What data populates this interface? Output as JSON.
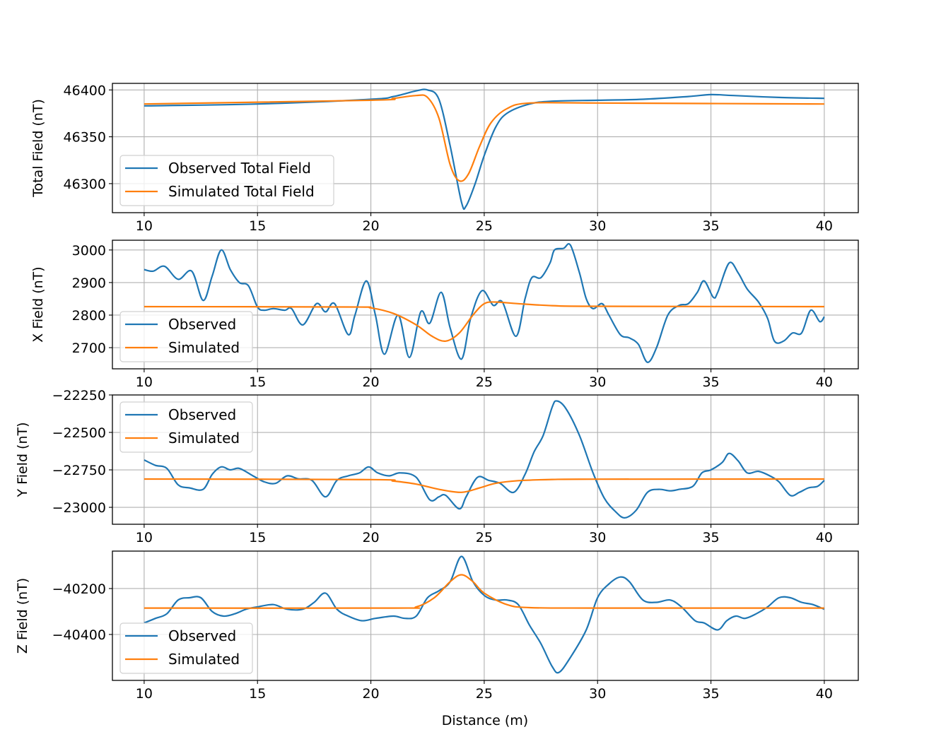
{
  "figure": {
    "xlabel": "Distance (m)"
  },
  "chart_data": [
    {
      "type": "line",
      "ylabel": "Total Field (nT)",
      "xlim": [
        8.6,
        41.5
      ],
      "ylim": [
        46269,
        46407
      ],
      "xticks": [
        10,
        15,
        20,
        25,
        30,
        35,
        40
      ],
      "yticks": [
        46300,
        46350,
        46400
      ],
      "grid": true,
      "legend": "lower-left",
      "series": [
        {
          "name": "Observed Total Field",
          "color": "#1f77b4",
          "x": [
            10,
            15,
            20,
            21,
            22,
            22.5,
            23,
            23.5,
            24,
            24.2,
            24.6,
            25,
            25.5,
            26,
            27,
            28,
            30,
            32,
            34,
            35,
            36,
            38,
            40
          ],
          "y": [
            46383,
            46385,
            46390,
            46393,
            46399,
            46400,
            46390,
            46340,
            46280,
            46276,
            46300,
            46330,
            46360,
            46375,
            46385,
            46388,
            46389,
            46390,
            46393,
            46395,
            46394,
            46392,
            46391
          ]
        },
        {
          "name": "Simulated Total Field",
          "color": "#ff7f0e",
          "x": [
            10,
            20,
            21,
            22,
            22.5,
            23,
            23.5,
            23.9,
            24.3,
            24.8,
            25.3,
            26,
            27,
            30,
            40
          ],
          "y": [
            46385,
            46389,
            46391,
            46394,
            46392,
            46370,
            46320,
            46303,
            46310,
            46340,
            46365,
            46380,
            46386,
            46386,
            46385
          ]
        }
      ]
    },
    {
      "type": "line",
      "ylabel": "X Field (nT)",
      "xlim": [
        8.6,
        41.5
      ],
      "ylim": [
        2635,
        3030
      ],
      "xticks": [
        10,
        15,
        20,
        25,
        30,
        35,
        40
      ],
      "yticks": [
        2700,
        2800,
        2900,
        3000
      ],
      "grid": true,
      "legend": "lower-left",
      "series": [
        {
          "name": "Observed",
          "color": "#1f77b4",
          "x": [
            10,
            10.4,
            10.9,
            11.5,
            12.1,
            12.6,
            13.0,
            13.4,
            13.8,
            14.2,
            14.6,
            15.0,
            15.3,
            15.7,
            16.2,
            16.5,
            17.0,
            17.6,
            18.0,
            18.4,
            19.0,
            19.3,
            19.8,
            20.2,
            20.6,
            21.2,
            21.7,
            22.2,
            22.6,
            23.1,
            23.5,
            24.0,
            24.4,
            24.9,
            25.4,
            25.8,
            26.4,
            26.8,
            27.1,
            27.5,
            27.9,
            28.1,
            28.5,
            28.8,
            29.2,
            29.5,
            29.8,
            30.2,
            30.5,
            31.0,
            31.4,
            31.8,
            32.2,
            32.6,
            33.1,
            33.6,
            34.0,
            34.4,
            34.7,
            35.1,
            35.3,
            35.8,
            36.2,
            36.6,
            37.1,
            37.5,
            37.8,
            38.2,
            38.6,
            39.0,
            39.4,
            39.8,
            40
          ],
          "y": [
            2940,
            2935,
            2950,
            2910,
            2935,
            2845,
            2920,
            3000,
            2940,
            2900,
            2890,
            2825,
            2815,
            2820,
            2815,
            2820,
            2770,
            2835,
            2810,
            2835,
            2740,
            2800,
            2905,
            2800,
            2680,
            2800,
            2670,
            2810,
            2775,
            2870,
            2760,
            2665,
            2790,
            2875,
            2830,
            2840,
            2735,
            2850,
            2915,
            2915,
            2960,
            3000,
            3005,
            3015,
            2930,
            2850,
            2820,
            2835,
            2800,
            2740,
            2730,
            2710,
            2655,
            2700,
            2800,
            2830,
            2835,
            2870,
            2905,
            2855,
            2870,
            2960,
            2930,
            2880,
            2840,
            2790,
            2720,
            2720,
            2745,
            2745,
            2815,
            2780,
            2795
          ]
        },
        {
          "name": "Simulated",
          "color": "#ff7f0e",
          "x": [
            10,
            19,
            20,
            21,
            22,
            22.7,
            23.3,
            23.9,
            24.5,
            25,
            25.5,
            26.5,
            28,
            30,
            40
          ],
          "y": [
            2826,
            2825,
            2822,
            2805,
            2770,
            2735,
            2720,
            2745,
            2800,
            2835,
            2840,
            2835,
            2829,
            2827,
            2826
          ]
        }
      ]
    },
    {
      "type": "line",
      "ylabel": "Y Field (nT)",
      "xlim": [
        8.6,
        41.5
      ],
      "ylim": [
        -23113,
        -22250
      ],
      "xticks": [
        10,
        15,
        20,
        25,
        30,
        35,
        40
      ],
      "yticks": [
        -22250,
        -22500,
        -22750,
        -23000
      ],
      "ytick_labels": [
        "−22250",
        "−22500",
        "−22750",
        "−23000"
      ],
      "grid": true,
      "legend": "upper-left",
      "series": [
        {
          "name": "Observed",
          "color": "#1f77b4",
          "x": [
            10,
            10.5,
            11,
            11.5,
            12,
            12.6,
            13.0,
            13.4,
            13.8,
            14.2,
            14.8,
            15.3,
            15.8,
            16.3,
            16.8,
            17.4,
            18.0,
            18.5,
            19.0,
            19.5,
            19.9,
            20.3,
            20.8,
            21.3,
            22.0,
            22.6,
            23.0,
            23.3,
            23.9,
            24.2,
            24.7,
            25.2,
            25.7,
            26.3,
            26.8,
            27.2,
            27.6,
            28.0,
            28.2,
            28.6,
            29.2,
            29.8,
            30.3,
            30.8,
            31.2,
            31.7,
            32.2,
            32.7,
            33.2,
            33.6,
            34.2,
            34.6,
            35.0,
            35.5,
            35.8,
            36.2,
            36.6,
            37.1,
            37.6,
            38.0,
            38.5,
            38.9,
            39.3,
            39.7,
            40
          ],
          "y": [
            -22684,
            -22720,
            -22740,
            -22850,
            -22870,
            -22880,
            -22780,
            -22730,
            -22750,
            -22740,
            -22790,
            -22830,
            -22840,
            -22790,
            -22810,
            -22820,
            -22930,
            -22820,
            -22790,
            -22770,
            -22730,
            -22770,
            -22790,
            -22770,
            -22800,
            -22950,
            -22930,
            -22920,
            -23010,
            -22930,
            -22800,
            -22820,
            -22840,
            -22900,
            -22780,
            -22630,
            -22520,
            -22330,
            -22290,
            -22340,
            -22520,
            -22770,
            -22940,
            -23030,
            -23070,
            -23020,
            -22900,
            -22880,
            -22890,
            -22880,
            -22860,
            -22770,
            -22750,
            -22700,
            -22640,
            -22690,
            -22770,
            -22760,
            -22790,
            -22830,
            -22920,
            -22900,
            -22870,
            -22860,
            -22820
          ]
        },
        {
          "name": "Simulated",
          "color": "#ff7f0e",
          "x": [
            10,
            20,
            21,
            22,
            23,
            24,
            24.8,
            25.5,
            26.5,
            28,
            30,
            40
          ],
          "y": [
            -22811,
            -22815,
            -22825,
            -22845,
            -22880,
            -22900,
            -22870,
            -22840,
            -22822,
            -22814,
            -22812,
            -22811
          ]
        }
      ]
    },
    {
      "type": "line",
      "ylabel": "Z Field (nT)",
      "xlim": [
        8.6,
        41.5
      ],
      "ylim": [
        -40600,
        -40037
      ],
      "xticks": [
        10,
        15,
        20,
        25,
        30,
        35,
        40
      ],
      "yticks": [
        -40200,
        -40400
      ],
      "ytick_labels": [
        "−40200",
        "−40400"
      ],
      "grid": true,
      "legend": "lower-left",
      "series": [
        {
          "name": "Observed",
          "color": "#1f77b4",
          "x": [
            10,
            10.5,
            11,
            11.5,
            12,
            12.5,
            13,
            13.5,
            14,
            14.5,
            15,
            15.7,
            16.3,
            17,
            17.5,
            18,
            18.5,
            19,
            19.6,
            20.2,
            21,
            21.5,
            22,
            22.5,
            23,
            23.5,
            24,
            24.5,
            25,
            25.5,
            26,
            26.5,
            27,
            27.5,
            28,
            28.3,
            28.8,
            29.5,
            30,
            30.5,
            31,
            31.4,
            32,
            32.6,
            33.2,
            33.7,
            34.3,
            34.7,
            35.3,
            35.7,
            36.1,
            36.5,
            37,
            37.5,
            38,
            38.5,
            39,
            39.5,
            40
          ],
          "y": [
            -40350,
            -40330,
            -40310,
            -40250,
            -40240,
            -40240,
            -40300,
            -40320,
            -40310,
            -40290,
            -40280,
            -40270,
            -40290,
            -40290,
            -40260,
            -40220,
            -40290,
            -40320,
            -40340,
            -40330,
            -40320,
            -40330,
            -40320,
            -40240,
            -40210,
            -40170,
            -40060,
            -40170,
            -40230,
            -40250,
            -40250,
            -40270,
            -40360,
            -40440,
            -40540,
            -40565,
            -40500,
            -40380,
            -40240,
            -40180,
            -40150,
            -40170,
            -40250,
            -40260,
            -40250,
            -40280,
            -40340,
            -40350,
            -40380,
            -40340,
            -40320,
            -40330,
            -40310,
            -40280,
            -40240,
            -40240,
            -40260,
            -40270,
            -40290
          ]
        },
        {
          "name": "Simulated",
          "color": "#ff7f0e",
          "x": [
            10,
            21,
            22,
            22.8,
            23.5,
            24,
            24.5,
            25,
            26,
            27,
            30,
            40
          ],
          "y": [
            -40285,
            -40285,
            -40280,
            -40240,
            -40170,
            -40140,
            -40170,
            -40220,
            -40270,
            -40283,
            -40285,
            -40285
          ]
        }
      ]
    }
  ]
}
